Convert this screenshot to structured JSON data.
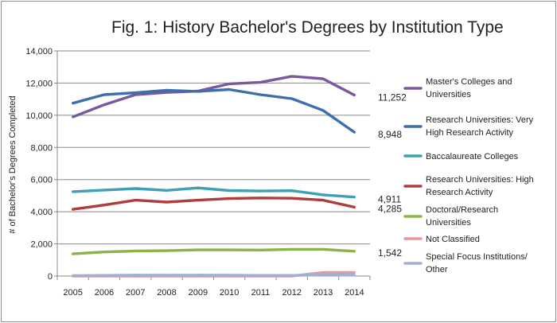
{
  "chart_data": {
    "type": "line",
    "title": "Fig. 1: History Bachelor's Degrees by Institution Type",
    "xlabel": "",
    "ylabel": "# of Bachelor's Degrees Completed",
    "ylim": [
      0,
      14000
    ],
    "y_ticks": [
      "0",
      "2,000",
      "4,000",
      "6,000",
      "8,000",
      "10,000",
      "12,000",
      "14,000"
    ],
    "categories": [
      "2005",
      "2006",
      "2007",
      "2008",
      "2009",
      "2010",
      "2011",
      "2012",
      "2013",
      "2014"
    ],
    "grid": "horizontal",
    "legend_position": "right",
    "series": [
      {
        "name": "Master's Colleges and Universities",
        "legend_lines": [
          "Master's Colleges and",
          "Universities"
        ],
        "color": "#7b57a0",
        "values": [
          9900,
          10650,
          11280,
          11420,
          11500,
          11950,
          12050,
          12420,
          12270,
          11252
        ],
        "end_label": "11,252"
      },
      {
        "name": "Research Universities: Very High Research Activity",
        "legend_lines": [
          "Research Universities: Very",
          "High Research Activity"
        ],
        "color": "#3d6fac",
        "values": [
          10750,
          11280,
          11400,
          11550,
          11480,
          11600,
          11280,
          11030,
          10300,
          8948
        ],
        "end_label": "8,948"
      },
      {
        "name": "Baccalaureate Colleges",
        "legend_lines": [
          "Baccalaureate Colleges"
        ],
        "color": "#3f9fb4",
        "values": [
          5250,
          5350,
          5440,
          5330,
          5480,
          5320,
          5290,
          5310,
          5050,
          4911
        ],
        "end_label": "4,911"
      },
      {
        "name": "Research Universities: High Research Activity",
        "legend_lines": [
          "Research Universities: High",
          "Research Activity"
        ],
        "color": "#ae3e3e",
        "values": [
          4150,
          4420,
          4720,
          4600,
          4720,
          4820,
          4860,
          4840,
          4720,
          4285
        ],
        "end_label": "4,285"
      },
      {
        "name": "Doctoral/Research Universities",
        "legend_lines": [
          "Doctoral/Research",
          "Universities"
        ],
        "color": "#8cb34a",
        "values": [
          1380,
          1500,
          1560,
          1580,
          1630,
          1630,
          1620,
          1660,
          1660,
          1542
        ],
        "end_label": "1,542"
      },
      {
        "name": "Not Classified",
        "legend_lines": [
          "Not Classified"
        ],
        "color": "#e49a9a",
        "values": [
          0,
          0,
          0,
          0,
          0,
          0,
          0,
          0,
          230,
          230
        ],
        "end_label": ""
      },
      {
        "name": "Special Focus Institutions/ Other",
        "legend_lines": [
          "Special Focus Institutions/",
          "Other"
        ],
        "color": "#9db1d8",
        "values": [
          30,
          40,
          60,
          50,
          60,
          50,
          40,
          40,
          80,
          60
        ],
        "end_label": ""
      }
    ]
  }
}
